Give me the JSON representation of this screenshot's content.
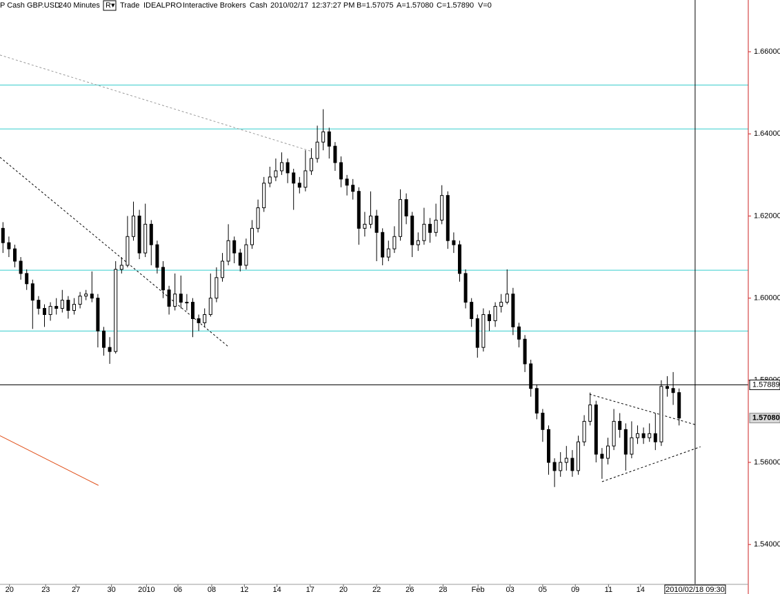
{
  "header": [
    "P Cash GBP.USD",
    "240 Minutes",
    "R▾",
    "Trade",
    "IDEALPRO",
    "Interactive Brokers",
    "Cash",
    "2010/02/17",
    "12:37:27 PM",
    "B=1.57075",
    "A=1.57080",
    "C=1.57890",
    "V=0"
  ],
  "chart_data": {
    "type": "candlestick",
    "open": [
      1.617,
      1.6135,
      1.612,
      1.609,
      1.606,
      1.6035,
      1.5995,
      1.5975,
      1.596,
      1.598,
      1.5975,
      1.5995,
      1.597,
      1.5985,
      1.6005,
      1.601,
      1.6,
      1.592,
      1.588,
      1.587,
      1.607,
      1.608,
      1.615,
      1.62,
      1.611,
      1.618,
      1.613,
      1.6075,
      1.602,
      1.598,
      1.601,
      1.599,
      1.599,
      1.595,
      1.594,
      1.596,
      1.6,
      1.605,
      1.609,
      1.614,
      1.611,
      1.608,
      1.613,
      1.617,
      1.622,
      1.628,
      1.6295,
      1.631,
      1.633,
      1.6305,
      1.628,
      1.627,
      1.631,
      1.634,
      1.638,
      1.6405,
      1.637,
      1.633,
      1.629,
      1.6275,
      1.626,
      1.617,
      1.618,
      1.62,
      1.616,
      1.61,
      1.612,
      1.615,
      1.624,
      1.62,
      1.613,
      1.614,
      1.618,
      1.616,
      1.619,
      1.625,
      1.614,
      1.613,
      1.606,
      1.599,
      1.595,
      1.588,
      1.596,
      1.5945,
      1.598,
      1.599,
      1.601,
      1.593,
      1.59,
      1.584,
      1.578,
      1.572,
      1.568,
      1.56,
      1.558,
      1.56,
      1.561,
      1.558,
      1.565,
      1.57,
      1.574,
      1.562,
      1.561,
      1.564,
      1.57,
      1.568,
      1.562,
      1.566,
      1.567,
      1.566,
      1.567,
      1.565,
      1.5785,
      1.578,
      1.577
    ],
    "high": [
      1.6185,
      1.615,
      1.613,
      1.61,
      1.607,
      1.6045,
      1.6005,
      1.5985,
      1.599,
      1.6,
      1.602,
      1.6005,
      1.6,
      1.6015,
      1.602,
      1.6065,
      1.601,
      1.593,
      1.5905,
      1.609,
      1.61,
      1.62,
      1.6235,
      1.6215,
      1.623,
      1.619,
      1.614,
      1.609,
      1.603,
      1.606,
      1.6055,
      1.601,
      1.6,
      1.596,
      1.5975,
      1.606,
      1.6075,
      1.611,
      1.618,
      1.615,
      1.612,
      1.6145,
      1.619,
      1.624,
      1.6295,
      1.632,
      1.634,
      1.6355,
      1.634,
      1.6315,
      1.6295,
      1.636,
      1.6365,
      1.642,
      1.646,
      1.6415,
      1.638,
      1.6345,
      1.63,
      1.629,
      1.627,
      1.621,
      1.626,
      1.6215,
      1.617,
      1.614,
      1.6175,
      1.6265,
      1.6255,
      1.621,
      1.616,
      1.622,
      1.6195,
      1.623,
      1.6275,
      1.626,
      1.616,
      1.614,
      1.607,
      1.6,
      1.596,
      1.5975,
      1.597,
      1.599,
      1.601,
      1.607,
      1.6025,
      1.594,
      1.591,
      1.585,
      1.579,
      1.573,
      1.569,
      1.561,
      1.5625,
      1.564,
      1.563,
      1.5665,
      1.5715,
      1.577,
      1.575,
      1.5635,
      1.566,
      1.573,
      1.572,
      1.5695,
      1.57,
      1.569,
      1.5685,
      1.5695,
      1.572,
      1.58,
      1.581,
      1.582,
      1.578
    ],
    "low": [
      1.611,
      1.61,
      1.6075,
      1.6045,
      1.602,
      1.5925,
      1.596,
      1.593,
      1.5945,
      1.596,
      1.5965,
      1.595,
      1.596,
      1.5975,
      1.5995,
      1.599,
      1.588,
      1.586,
      1.584,
      1.5865,
      1.606,
      1.6075,
      1.614,
      1.6095,
      1.61,
      1.608,
      1.606,
      1.6,
      1.596,
      1.597,
      1.5975,
      1.597,
      1.5905,
      1.592,
      1.593,
      1.5955,
      1.599,
      1.604,
      1.608,
      1.6085,
      1.6065,
      1.607,
      1.612,
      1.616,
      1.621,
      1.627,
      1.6285,
      1.63,
      1.628,
      1.6215,
      1.6255,
      1.626,
      1.63,
      1.633,
      1.636,
      1.634,
      1.631,
      1.627,
      1.625,
      1.624,
      1.613,
      1.615,
      1.617,
      1.609,
      1.608,
      1.609,
      1.611,
      1.614,
      1.618,
      1.61,
      1.6115,
      1.613,
      1.6135,
      1.615,
      1.618,
      1.612,
      1.611,
      1.604,
      1.5975,
      1.593,
      1.5855,
      1.587,
      1.592,
      1.593,
      1.5965,
      1.5985,
      1.591,
      1.588,
      1.582,
      1.576,
      1.5705,
      1.565,
      1.557,
      1.554,
      1.5565,
      1.558,
      1.5565,
      1.557,
      1.564,
      1.569,
      1.56,
      1.556,
      1.5595,
      1.563,
      1.566,
      1.558,
      1.561,
      1.5645,
      1.5645,
      1.565,
      1.563,
      1.564,
      1.576,
      1.574,
      1.569
    ],
    "close": [
      1.6135,
      1.612,
      1.609,
      1.606,
      1.6035,
      1.5995,
      1.5975,
      1.596,
      1.598,
      1.5975,
      1.5995,
      1.597,
      1.5985,
      1.6005,
      1.601,
      1.6,
      1.592,
      1.588,
      1.587,
      1.607,
      1.608,
      1.615,
      1.62,
      1.611,
      1.618,
      1.613,
      1.6075,
      1.602,
      1.598,
      1.601,
      1.599,
      1.599,
      1.595,
      1.594,
      1.596,
      1.6,
      1.605,
      1.609,
      1.614,
      1.611,
      1.608,
      1.613,
      1.617,
      1.622,
      1.628,
      1.6295,
      1.631,
      1.633,
      1.6305,
      1.628,
      1.627,
      1.631,
      1.634,
      1.638,
      1.6405,
      1.637,
      1.633,
      1.629,
      1.6275,
      1.626,
      1.617,
      1.618,
      1.62,
      1.616,
      1.61,
      1.612,
      1.615,
      1.624,
      1.62,
      1.613,
      1.614,
      1.618,
      1.616,
      1.619,
      1.625,
      1.614,
      1.613,
      1.606,
      1.599,
      1.595,
      1.588,
      1.596,
      1.5945,
      1.598,
      1.599,
      1.601,
      1.593,
      1.59,
      1.584,
      1.578,
      1.572,
      1.568,
      1.56,
      1.558,
      1.56,
      1.561,
      1.558,
      1.565,
      1.57,
      1.574,
      1.562,
      1.561,
      1.564,
      1.57,
      1.568,
      1.562,
      1.566,
      1.567,
      1.566,
      1.567,
      1.565,
      1.5785,
      1.578,
      1.577,
      1.5708
    ],
    "xlim": [
      0,
      126
    ],
    "xticks": [
      {
        "value": 1.6,
        "label": "20"
      },
      {
        "value": 7.7,
        "label": "23"
      },
      {
        "value": 12.8,
        "label": "27"
      },
      {
        "value": 18.8,
        "label": "30"
      },
      {
        "value": 24.7,
        "label": "2010"
      },
      {
        "value": 30,
        "label": "06"
      },
      {
        "value": 35.7,
        "label": "08"
      },
      {
        "value": 41.2,
        "label": "12"
      },
      {
        "value": 46.7,
        "label": "14"
      },
      {
        "value": 52.3,
        "label": "17"
      },
      {
        "value": 57.9,
        "label": "20"
      },
      {
        "value": 63.5,
        "label": "22"
      },
      {
        "value": 69.1,
        "label": "26"
      },
      {
        "value": 74.7,
        "label": "28"
      },
      {
        "value": 80.6,
        "label": "Feb"
      },
      {
        "value": 86,
        "label": "03"
      },
      {
        "value": 91.5,
        "label": "05"
      },
      {
        "value": 97,
        "label": "09"
      },
      {
        "value": 102.6,
        "label": "11"
      },
      {
        "value": 108,
        "label": "14"
      }
    ],
    "ylim": [
      1.5303,
      1.6726
    ],
    "yticks": [
      {
        "value": 1.54,
        "label": "1.54000"
      },
      {
        "value": 1.56,
        "label": "1.56000"
      },
      {
        "value": 1.58,
        "label": "1.58000"
      },
      {
        "value": 1.6,
        "label": "1.60000"
      },
      {
        "value": 1.62,
        "label": "1.62000"
      },
      {
        "value": 1.64,
        "label": "1.64000"
      },
      {
        "value": 1.66,
        "label": "1.66000"
      }
    ],
    "up_color": "#ffffff",
    "down_color": "#000000",
    "axis_color": "#cc2222",
    "levels": {
      "color": "#33cccc",
      "values": [
        1.6519,
        1.6412,
        1.6068,
        1.592
      ]
    },
    "trendlines": [
      {
        "color": "#999999",
        "dash": true,
        "x": [
          0,
          52.6
        ],
        "y": [
          1.6592,
          1.6357
        ]
      },
      {
        "color": "#000000",
        "dash": true,
        "x": [
          0,
          38.4
        ],
        "y": [
          1.6343,
          1.5883
        ]
      },
      {
        "color": "#e0501a",
        "dash": false,
        "x": [
          0,
          16.6
        ],
        "y": [
          1.5665,
          1.5544
        ]
      },
      {
        "color": "#000000",
        "dash": true,
        "x": [
          99.4,
          117.2
        ],
        "y": [
          1.5766,
          1.5692
        ]
      },
      {
        "color": "#000000",
        "dash": true,
        "x": [
          101.5,
          118.1
        ],
        "y": [
          1.5553,
          1.5638
        ]
      }
    ],
    "cursor": {
      "x": 117.2,
      "x_label": "2010/02/18 09:30",
      "price": 1.57889
    },
    "last_price": {
      "value": 1.5708,
      "label": "1.57080"
    }
  }
}
